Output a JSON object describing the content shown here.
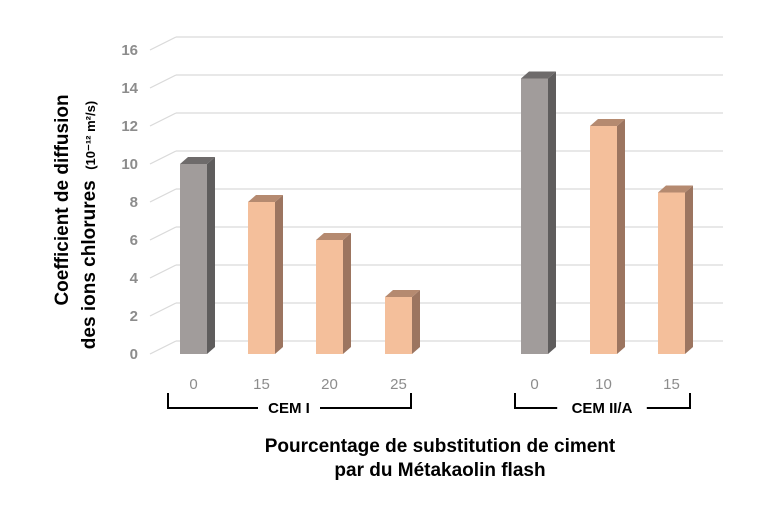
{
  "chart_data": {
    "type": "bar",
    "style": "3d-column",
    "title": "",
    "ylabel_line1": "Coefficient de diffusion",
    "ylabel_line2": "des ions chlorures",
    "ylabel_unit": "(10⁻¹² m²/s)",
    "xlabel_line1": "Pourcentage de substitution de ciment",
    "xlabel_line2": "par du Métakaolin flash",
    "ylim": [
      0,
      16
    ],
    "yticks": [
      "0",
      "2",
      "4",
      "6",
      "8",
      "10",
      "12",
      "14",
      "16"
    ],
    "grid": true,
    "groups": [
      {
        "name": "CEM I",
        "categories": [
          "0",
          "15",
          "20",
          "25"
        ],
        "values": [
          10,
          8,
          6,
          3
        ],
        "colors": [
          "gray",
          "peach",
          "peach",
          "peach"
        ]
      },
      {
        "name": "CEM II/A",
        "categories": [
          "0",
          "10",
          "15"
        ],
        "values": [
          14.5,
          12,
          8.5
        ],
        "colors": [
          "gray",
          "peach",
          "peach"
        ]
      }
    ],
    "palette": {
      "gray_front": "#a19c9b",
      "gray_side": "#5f5d5d",
      "gray_top": "#6e6b6b",
      "peach_front": "#f4bf9b",
      "peach_side": "#9c7560",
      "peach_top": "#b58a70",
      "grid": "#d9d9d9",
      "tick_text": "#8c8c8c"
    }
  }
}
